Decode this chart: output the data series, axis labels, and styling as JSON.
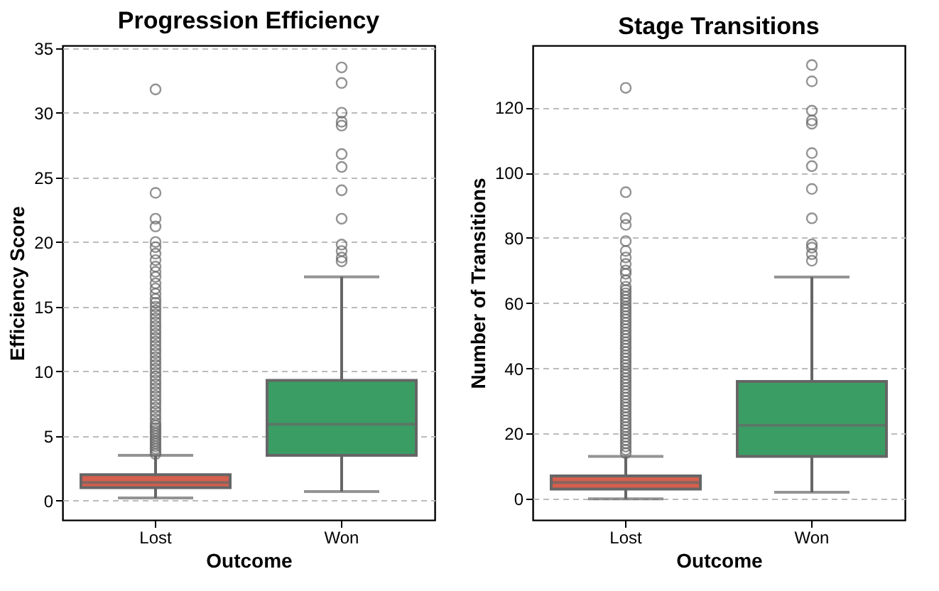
{
  "chart_data": [
    {
      "type": "box",
      "title": "Progression Efficiency",
      "xlabel": "Outcome",
      "ylabel": "Efficiency Score",
      "categories": [
        "Lost",
        "Won"
      ],
      "colors": [
        "#d65f4d",
        "#3a9e64"
      ],
      "ylim": [
        -1.5,
        35.2
      ],
      "yticks": [
        0,
        5,
        10,
        15,
        20,
        25,
        30,
        35
      ],
      "grid": "y",
      "boxes": [
        {
          "low": 0.2,
          "q1": 1.0,
          "median": 1.4,
          "q3": 2.0,
          "high": 3.5,
          "outliers": [
            3.6,
            3.8,
            4.0,
            4.2,
            4.4,
            4.6,
            4.8,
            5.0,
            5.2,
            5.4,
            5.6,
            5.8,
            6.0,
            6.3,
            6.6,
            6.9,
            7.2,
            7.5,
            7.8,
            8.1,
            8.4,
            8.7,
            9.0,
            9.3,
            9.6,
            9.9,
            10.2,
            10.5,
            10.8,
            11.1,
            11.4,
            11.7,
            12.0,
            12.3,
            12.6,
            12.9,
            13.2,
            13.5,
            13.8,
            14.1,
            14.4,
            14.7,
            15.0,
            15.3,
            15.6,
            16.0,
            16.4,
            16.8,
            17.3,
            17.7,
            18.1,
            18.6,
            19.1,
            19.6,
            20.0,
            21.2,
            21.8,
            23.8,
            31.8
          ]
        },
        {
          "low": 0.7,
          "q1": 3.5,
          "median": 5.9,
          "q3": 9.3,
          "high": 17.3,
          "outliers": [
            18.5,
            18.8,
            19.3,
            19.8,
            21.8,
            24.0,
            25.8,
            26.8,
            29.0,
            29.3,
            30.0,
            32.3,
            33.5
          ]
        }
      ]
    },
    {
      "type": "box",
      "title": "Stage Transitions",
      "xlabel": "Outcome",
      "ylabel": "Number of Transitions",
      "categories": [
        "Lost",
        "Won"
      ],
      "colors": [
        "#d65f4d",
        "#3a9e64"
      ],
      "ylim": [
        -6.5,
        139
      ],
      "yticks": [
        0,
        20,
        40,
        60,
        80,
        100,
        120
      ],
      "grid": "y",
      "boxes": [
        {
          "low": 0,
          "q1": 3,
          "median": 5,
          "q3": 7,
          "high": 13,
          "outliers": [
            14,
            15,
            16,
            17,
            18,
            19,
            20,
            21,
            22,
            23,
            24,
            25,
            26,
            27,
            28,
            29,
            30,
            31,
            32,
            33,
            34,
            35,
            36,
            37,
            38,
            39,
            40,
            41,
            42,
            43,
            44,
            45,
            46,
            47,
            48,
            49,
            50,
            51,
            52,
            53,
            54,
            55,
            56,
            57,
            58,
            59,
            60,
            61,
            62,
            63,
            64,
            65,
            67,
            69,
            70,
            72,
            74,
            76,
            79,
            84,
            86,
            94,
            126
          ]
        },
        {
          "low": 2,
          "q1": 13,
          "median": 22.5,
          "q3": 36,
          "high": 68,
          "outliers": [
            73,
            75,
            77,
            78,
            86,
            95,
            102,
            106,
            115,
            116,
            119,
            128,
            133
          ]
        }
      ]
    }
  ]
}
